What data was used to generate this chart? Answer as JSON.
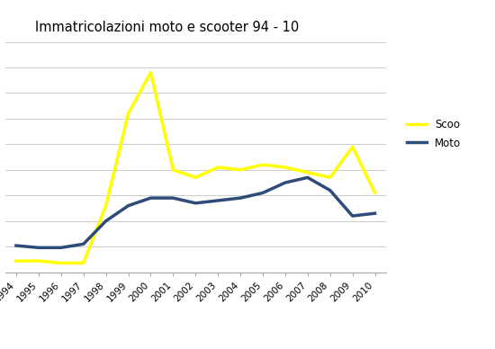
{
  "title": "Immatricolazioni moto e scooter 94 - 10",
  "years": [
    1994,
    1995,
    1996,
    1997,
    1998,
    1999,
    2000,
    2001,
    2002,
    2003,
    2004,
    2005,
    2006,
    2007,
    2008,
    2009,
    2010
  ],
  "scooter": [
    22000,
    22000,
    18000,
    18000,
    130000,
    310000,
    390000,
    200000,
    185000,
    205000,
    200000,
    210000,
    205000,
    195000,
    185000,
    245000,
    155000
  ],
  "moto": [
    52000,
    48000,
    48000,
    55000,
    100000,
    130000,
    145000,
    145000,
    135000,
    140000,
    145000,
    155000,
    175000,
    185000,
    160000,
    110000,
    115000
  ],
  "scooter_color": "#FFFF00",
  "moto_color": "#2E4B7A",
  "background_color": "#FFFFFF",
  "grid_color": "#CCCCCC",
  "ylim": [
    0,
    450000
  ],
  "ytick_step": 50000,
  "scooter_label": "Scoo",
  "moto_label": "Moto",
  "title_fontsize": 10.5,
  "tick_fontsize": 7.5,
  "legend_fontsize": 8.5,
  "linewidth": 2.5
}
